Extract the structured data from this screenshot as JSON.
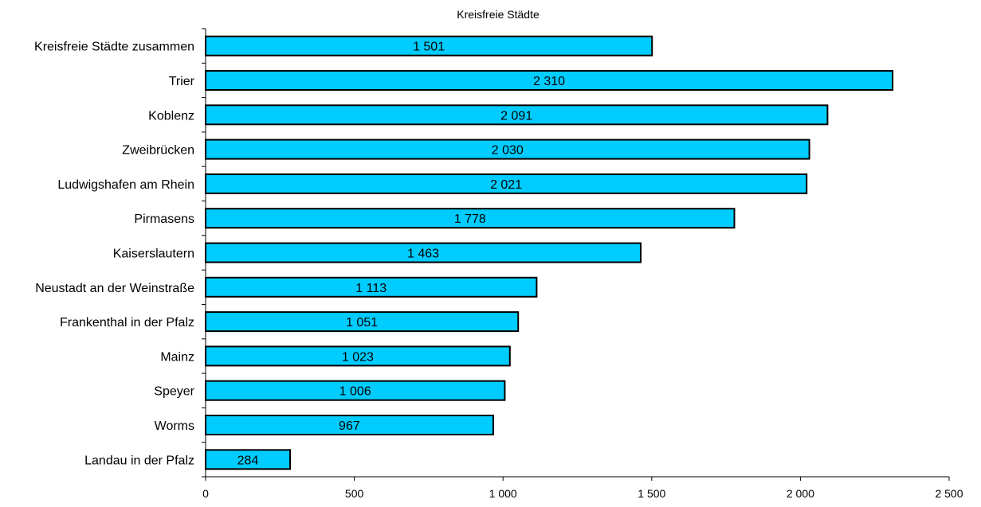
{
  "chart_data": {
    "type": "bar",
    "orientation": "horizontal",
    "title": "Kreisfreie Städte",
    "xlabel": "",
    "ylabel": "",
    "categories": [
      "Kreisfreie Städte zusammen",
      "Trier",
      "Koblenz",
      "Zweibrücken",
      "Ludwigshafen am Rhein",
      "Pirmasens",
      "Kaiserslautern",
      "Neustadt an der Weinstraße",
      "Frankenthal in der Pfalz",
      "Mainz",
      "Speyer",
      "Worms",
      "Landau  in der Pfalz"
    ],
    "values": [
      1501,
      2310,
      2091,
      2030,
      2021,
      1778,
      1463,
      1113,
      1051,
      1023,
      1006,
      967,
      284
    ],
    "value_labels": [
      "1 501",
      "2 310",
      "2 091",
      "2 030",
      "2 021",
      "1 778",
      "1 463",
      "1 113",
      "1 051",
      "1 023",
      "1 006",
      "967",
      "284"
    ],
    "xlim": [
      0,
      2500
    ],
    "xticks": [
      0,
      500,
      1000,
      1500,
      2000,
      2500
    ],
    "xtick_labels": [
      "0",
      "500",
      "1 000",
      "1 500",
      "2 000",
      "2 500"
    ],
    "grid": false,
    "legend": "none",
    "bar_color": "#00ccff",
    "bar_edge_color": "#000000"
  }
}
